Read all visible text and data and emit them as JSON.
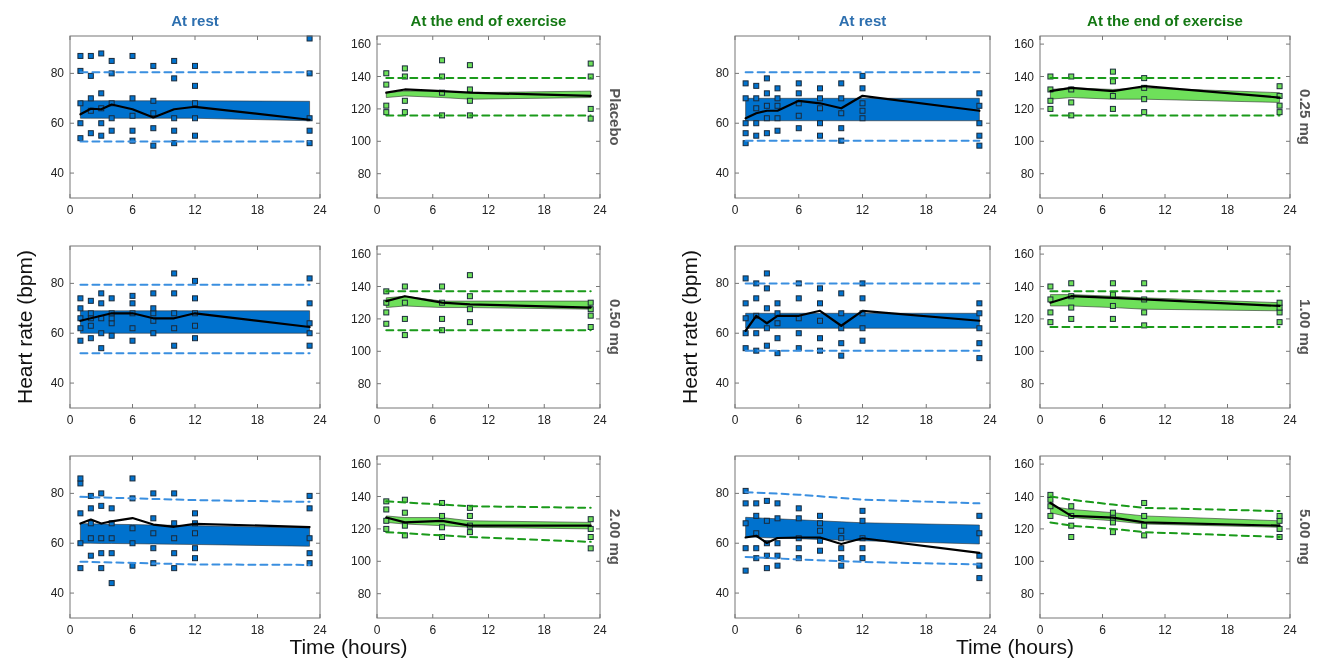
{
  "chart_data": [
    {
      "type": "line",
      "title": "At rest",
      "xlim": [
        0,
        24
      ],
      "xticks": [
        0,
        6,
        12,
        18,
        24
      ],
      "ylim": [
        30,
        95
      ],
      "yticks": [
        40,
        60,
        80
      ],
      "series": [
        {
          "type": "scatter",
          "color": "#0072ce",
          "marker": "square",
          "x": [
            1,
            1,
            1,
            1,
            1,
            2,
            2,
            2,
            2,
            2,
            3,
            3,
            3,
            3,
            3,
            4,
            4,
            4,
            4,
            4,
            6,
            6,
            6,
            6,
            6,
            8,
            8,
            8,
            8,
            8,
            10,
            10,
            10,
            10,
            10,
            12,
            12,
            12,
            12,
            12,
            23,
            23,
            23,
            23,
            23
          ],
          "values": [
            54,
            60,
            68,
            81,
            87,
            56,
            65,
            70,
            79,
            87,
            55,
            60,
            66,
            72,
            88,
            57,
            62,
            68,
            80,
            85,
            53,
            57,
            63,
            70,
            87,
            51,
            58,
            64,
            69,
            83,
            52,
            57,
            62,
            78,
            85,
            55,
            62,
            68,
            75,
            83,
            52,
            57,
            62,
            80,
            94
          ]
        },
        {
          "type": "line",
          "color": "#3a8fe0",
          "line_style": "dashed",
          "x": [
            1,
            12,
            23
          ],
          "values": [
            80.5,
            80.5,
            80.5
          ]
        },
        {
          "type": "line",
          "color": "#3a8fe0",
          "line_style": "dashed",
          "x": [
            1,
            12,
            23
          ],
          "values": [
            52.7,
            52.7,
            52.7
          ]
        },
        {
          "type": "line",
          "color": "#000000",
          "x": [
            1,
            2,
            3,
            4,
            6,
            8,
            10,
            12,
            23
          ],
          "values": [
            63.6,
            65.8,
            65.6,
            67.5,
            65.6,
            62.3,
            65.6,
            66.6,
            61.4
          ],
          "lower": [
            62,
            62,
            62,
            62,
            62,
            62,
            62,
            62,
            61
          ],
          "upper": [
            69,
            69,
            69,
            69,
            69,
            69,
            69,
            69,
            68.8
          ]
        }
      ]
    },
    {
      "type": "line",
      "title": "At the end of exercise",
      "y2label": "Placebo",
      "xlim": [
        0,
        24
      ],
      "xticks": [
        0,
        6,
        12,
        18,
        24
      ],
      "ylim": [
        65,
        165
      ],
      "yticks": [
        80,
        100,
        120,
        140,
        160
      ],
      "series": [
        {
          "type": "scatter",
          "color": "#6ee05a",
          "marker": "square",
          "x": [
            1,
            1,
            1,
            1,
            3,
            3,
            3,
            3,
            7,
            7,
            7,
            7,
            10,
            10,
            10,
            10,
            23,
            23,
            23,
            23
          ],
          "values": [
            118,
            122,
            135,
            142,
            118,
            125,
            140,
            145,
            116,
            130,
            140,
            150,
            116,
            125,
            132,
            147,
            114,
            120,
            140,
            148
          ]
        },
        {
          "type": "line",
          "color": "#1a9a1a",
          "line_style": "dashed",
          "x": [
            1,
            10,
            23
          ],
          "values": [
            139,
            139,
            139
          ]
        },
        {
          "type": "line",
          "color": "#1a9a1a",
          "line_style": "dashed",
          "x": [
            1,
            10,
            23
          ],
          "values": [
            116,
            116,
            116
          ]
        },
        {
          "type": "line",
          "color": "#000000",
          "x": [
            1,
            3,
            7,
            10,
            23
          ],
          "values": [
            130,
            132,
            131,
            130,
            128
          ],
          "lower": [
            127,
            128,
            127,
            126,
            127
          ],
          "upper": [
            130,
            131,
            131,
            130,
            131
          ]
        }
      ]
    },
    {
      "type": "line",
      "title": "At rest",
      "xlim": [
        0,
        24
      ],
      "xticks": [
        0,
        6,
        12,
        18,
        24
      ],
      "ylim": [
        30,
        95
      ],
      "yticks": [
        40,
        60,
        80
      ],
      "series": [
        {
          "type": "scatter",
          "color": "#0072ce",
          "marker": "square",
          "x": [
            1,
            1,
            1,
            1,
            1,
            2,
            2,
            2,
            2,
            2,
            3,
            3,
            3,
            3,
            3,
            4,
            4,
            4,
            4,
            4,
            6,
            6,
            6,
            6,
            6,
            8,
            8,
            8,
            8,
            8,
            10,
            10,
            10,
            10,
            10,
            12,
            12,
            12,
            12,
            12,
            23,
            23,
            23,
            23,
            23
          ],
          "values": [
            52,
            56,
            60,
            70,
            76,
            55,
            60,
            66,
            70,
            75,
            56,
            62,
            67,
            72,
            78,
            57,
            62,
            67,
            70,
            74,
            58,
            63,
            68,
            72,
            76,
            55,
            60,
            66,
            70,
            74,
            53,
            58,
            64,
            70,
            76,
            62,
            65,
            68,
            74,
            79,
            51,
            55,
            60,
            67,
            72
          ]
        },
        {
          "type": "line",
          "color": "#3a8fe0",
          "line_style": "dashed",
          "x": [
            1,
            12,
            23
          ],
          "values": [
            80.5,
            80.5,
            80.5
          ]
        },
        {
          "type": "line",
          "color": "#3a8fe0",
          "line_style": "dashed",
          "x": [
            1,
            12,
            23
          ],
          "values": [
            53,
            53,
            53
          ]
        },
        {
          "type": "line",
          "color": "#000000",
          "x": [
            1,
            2,
            3,
            4,
            6,
            8,
            10,
            12,
            23
          ],
          "values": [
            62,
            64,
            65,
            65,
            69,
            68,
            66,
            71,
            65
          ],
          "lower": [
            61,
            61,
            61,
            61,
            61,
            61,
            61,
            61,
            61
          ],
          "upper": [
            70,
            70,
            70,
            70,
            70,
            70,
            70,
            70,
            70
          ]
        }
      ]
    },
    {
      "type": "line",
      "title": "At the end of exercise",
      "y2label": "0.25 mg",
      "xlim": [
        0,
        24
      ],
      "xticks": [
        0,
        6,
        12,
        18,
        24
      ],
      "ylim": [
        65,
        165
      ],
      "yticks": [
        80,
        100,
        120,
        140,
        160
      ],
      "series": [
        {
          "type": "scatter",
          "color": "#6ee05a",
          "marker": "square",
          "x": [
            1,
            1,
            1,
            1,
            3,
            3,
            3,
            3,
            7,
            7,
            7,
            7,
            10,
            10,
            10,
            10,
            23,
            23,
            23,
            23
          ],
          "values": [
            120,
            125,
            132,
            140,
            116,
            124,
            132,
            140,
            120,
            128,
            137,
            143,
            118,
            126,
            133,
            139,
            118,
            122,
            128,
            134
          ]
        },
        {
          "type": "line",
          "color": "#1a9a1a",
          "line_style": "dashed",
          "x": [
            1,
            10,
            23
          ],
          "values": [
            139,
            139,
            139
          ]
        },
        {
          "type": "line",
          "color": "#1a9a1a",
          "line_style": "dashed",
          "x": [
            1,
            10,
            23
          ],
          "values": [
            116,
            116,
            116
          ]
        },
        {
          "type": "line",
          "color": "#000000",
          "x": [
            1,
            3,
            7,
            10,
            23
          ],
          "values": [
            131,
            133,
            131,
            134,
            127
          ],
          "lower": [
            126,
            127,
            126,
            126,
            124
          ],
          "upper": [
            132,
            133,
            132,
            133,
            130
          ]
        }
      ]
    },
    {
      "type": "line",
      "ylabel": "Heart rate (bpm)",
      "xlim": [
        0,
        24
      ],
      "xticks": [
        0,
        6,
        12,
        18,
        24
      ],
      "ylim": [
        30,
        95
      ],
      "yticks": [
        40,
        60,
        80
      ],
      "series": [
        {
          "type": "scatter",
          "color": "#0072ce",
          "marker": "square",
          "x": [
            1,
            1,
            1,
            1,
            1,
            2,
            2,
            2,
            2,
            2,
            3,
            3,
            3,
            3,
            3,
            4,
            4,
            4,
            4,
            4,
            6,
            6,
            6,
            6,
            6,
            8,
            8,
            8,
            8,
            8,
            10,
            10,
            10,
            10,
            10,
            12,
            12,
            12,
            12,
            12,
            23,
            23,
            23,
            23,
            23
          ],
          "values": [
            57,
            62,
            66,
            70,
            74,
            58,
            63,
            66,
            68,
            73,
            54,
            60,
            66,
            72,
            76,
            59,
            64,
            66,
            68,
            74,
            57,
            62,
            68,
            72,
            75,
            60,
            65,
            68,
            70,
            76,
            55,
            62,
            68,
            76,
            84,
            58,
            63,
            68,
            74,
            81,
            55,
            60,
            64,
            72,
            82
          ]
        },
        {
          "type": "line",
          "color": "#3a8fe0",
          "line_style": "dashed",
          "x": [
            1,
            12,
            23
          ],
          "values": [
            79.5,
            79.5,
            79.5
          ]
        },
        {
          "type": "line",
          "color": "#3a8fe0",
          "line_style": "dashed",
          "x": [
            1,
            12,
            23
          ],
          "values": [
            52,
            52,
            52
          ]
        },
        {
          "type": "line",
          "color": "#000000",
          "x": [
            1,
            2,
            3,
            4,
            6,
            8,
            10,
            12,
            23
          ],
          "values": [
            65,
            66,
            67,
            68,
            68,
            66,
            66,
            68,
            62.5
          ],
          "lower": [
            60,
            60,
            60,
            60,
            60,
            60,
            60,
            60,
            60
          ],
          "upper": [
            69,
            69,
            69,
            69,
            69,
            69,
            69,
            69,
            69
          ]
        }
      ]
    },
    {
      "type": "line",
      "y2label": "0.50 mg",
      "xlim": [
        0,
        24
      ],
      "xticks": [
        0,
        6,
        12,
        18,
        24
      ],
      "ylim": [
        65,
        165
      ],
      "yticks": [
        80,
        100,
        120,
        140,
        160
      ],
      "series": [
        {
          "type": "scatter",
          "color": "#6ee05a",
          "marker": "square",
          "x": [
            1,
            1,
            1,
            1,
            3,
            3,
            3,
            3,
            7,
            7,
            7,
            7,
            10,
            10,
            10,
            10,
            23,
            23,
            23,
            23
          ],
          "values": [
            117,
            124,
            130,
            137,
            110,
            120,
            130,
            140,
            113,
            120,
            130,
            140,
            118,
            126,
            134,
            147,
            115,
            122,
            126,
            130
          ]
        },
        {
          "type": "line",
          "color": "#1a9a1a",
          "line_style": "dashed",
          "x": [
            1,
            10,
            23
          ],
          "values": [
            137,
            137,
            137
          ]
        },
        {
          "type": "line",
          "color": "#1a9a1a",
          "line_style": "dashed",
          "x": [
            1,
            10,
            23
          ],
          "values": [
            113,
            113,
            113
          ]
        },
        {
          "type": "line",
          "color": "#000000",
          "x": [
            1,
            3,
            7,
            10,
            23
          ],
          "values": [
            131,
            134,
            130,
            129,
            127
          ],
          "lower": [
            127,
            128,
            127,
            127,
            126
          ],
          "upper": [
            133,
            134,
            131,
            131,
            131
          ]
        }
      ]
    },
    {
      "type": "line",
      "ylabel": "Heart rate (bpm)",
      "xlim": [
        0,
        24
      ],
      "xticks": [
        0,
        6,
        12,
        18,
        24
      ],
      "ylim": [
        30,
        95
      ],
      "yticks": [
        40,
        60,
        80
      ],
      "series": [
        {
          "type": "scatter",
          "color": "#0072ce",
          "marker": "square",
          "x": [
            1,
            1,
            1,
            1,
            1,
            2,
            2,
            2,
            2,
            2,
            3,
            3,
            3,
            3,
            3,
            4,
            4,
            4,
            4,
            4,
            6,
            6,
            6,
            6,
            6,
            8,
            8,
            8,
            8,
            8,
            10,
            10,
            10,
            10,
            10,
            12,
            12,
            12,
            12,
            12,
            23,
            23,
            23,
            23,
            23
          ],
          "values": [
            54,
            60,
            66,
            72,
            82,
            53,
            60,
            67,
            74,
            80,
            55,
            62,
            70,
            78,
            84,
            52,
            58,
            64,
            68,
            72,
            54,
            60,
            66,
            74,
            80,
            53,
            58,
            65,
            72,
            78,
            51,
            56,
            62,
            68,
            76,
            57,
            62,
            68,
            74,
            80,
            50,
            56,
            62,
            68,
            72
          ]
        },
        {
          "type": "line",
          "color": "#3a8fe0",
          "line_style": "dashed",
          "x": [
            1,
            12,
            23
          ],
          "values": [
            80,
            80,
            80
          ]
        },
        {
          "type": "line",
          "color": "#3a8fe0",
          "line_style": "dashed",
          "x": [
            1,
            12,
            23
          ],
          "values": [
            53,
            53,
            53
          ]
        },
        {
          "type": "line",
          "color": "#000000",
          "x": [
            1,
            2,
            3,
            4,
            6,
            8,
            10,
            12,
            23
          ],
          "values": [
            61,
            67,
            64,
            67,
            67,
            69,
            63,
            69,
            65
          ],
          "lower": [
            62,
            62,
            62,
            62,
            62,
            62,
            62,
            62,
            62
          ],
          "upper": [
            68,
            68,
            68,
            68,
            68,
            68,
            68,
            68,
            68
          ]
        }
      ]
    },
    {
      "type": "line",
      "y2label": "1.00 mg",
      "xlim": [
        0,
        24
      ],
      "xticks": [
        0,
        6,
        12,
        18,
        24
      ],
      "ylim": [
        65,
        165
      ],
      "yticks": [
        80,
        100,
        120,
        140,
        160
      ],
      "series": [
        {
          "type": "scatter",
          "color": "#6ee05a",
          "marker": "square",
          "x": [
            1,
            1,
            1,
            1,
            3,
            3,
            3,
            3,
            7,
            7,
            7,
            7,
            10,
            10,
            10,
            10,
            23,
            23,
            23,
            23
          ],
          "values": [
            118,
            124,
            132,
            140,
            120,
            127,
            134,
            142,
            120,
            128,
            135,
            142,
            116,
            124,
            132,
            142,
            118,
            124,
            127,
            130
          ]
        },
        {
          "type": "line",
          "color": "#1a9a1a",
          "line_style": "dashed",
          "x": [
            1,
            10,
            23
          ],
          "values": [
            137,
            137,
            137
          ]
        },
        {
          "type": "line",
          "color": "#1a9a1a",
          "line_style": "dashed",
          "x": [
            1,
            10,
            23
          ],
          "values": [
            115,
            115,
            115
          ]
        },
        {
          "type": "line",
          "color": "#000000",
          "x": [
            1,
            3,
            7,
            10,
            23
          ],
          "values": [
            130,
            134,
            133,
            132,
            128
          ],
          "lower": [
            128,
            128,
            127,
            126,
            125
          ],
          "upper": [
            135,
            135,
            134,
            133,
            130
          ]
        }
      ]
    },
    {
      "type": "line",
      "xlabel": "Time (hours)",
      "xlim": [
        0,
        24
      ],
      "xticks": [
        0,
        6,
        12,
        18,
        24
      ],
      "ylim": [
        30,
        95
      ],
      "yticks": [
        40,
        60,
        80
      ],
      "series": [
        {
          "type": "scatter",
          "color": "#0072ce",
          "marker": "square",
          "x": [
            1,
            1,
            1,
            1,
            1,
            2,
            2,
            2,
            2,
            2,
            3,
            3,
            3,
            3,
            3,
            4,
            4,
            4,
            4,
            4,
            6,
            6,
            6,
            6,
            6,
            8,
            8,
            8,
            8,
            8,
            10,
            10,
            10,
            10,
            10,
            12,
            12,
            12,
            12,
            12,
            23,
            23,
            23,
            23,
            23
          ],
          "values": [
            50,
            60,
            72,
            84,
            86,
            55,
            62,
            68,
            74,
            79,
            50,
            56,
            62,
            75,
            80,
            44,
            56,
            62,
            68,
            74,
            51,
            60,
            66,
            78,
            86,
            52,
            58,
            64,
            70,
            80,
            50,
            56,
            62,
            68,
            80,
            54,
            58,
            64,
            68,
            72,
            52,
            56,
            62,
            74,
            79
          ]
        },
        {
          "type": "line",
          "color": "#3a8fe0",
          "line_style": "dashed",
          "x": [
            1,
            12,
            23
          ],
          "values": [
            78.6,
            77.3,
            76.6
          ]
        },
        {
          "type": "line",
          "color": "#3a8fe0",
          "line_style": "dashed",
          "x": [
            1,
            12,
            23
          ],
          "values": [
            52.6,
            51.5,
            51.3
          ]
        },
        {
          "type": "line",
          "color": "#000000",
          "x": [
            1,
            2,
            3,
            4,
            6,
            8,
            10,
            12,
            23
          ],
          "values": [
            67.9,
            69.5,
            67.9,
            68.8,
            70.1,
            67.5,
            66.6,
            67.8,
            66.5
          ],
          "lower": [
            60,
            60,
            59.9,
            59.9,
            59.8,
            59.7,
            59.6,
            59.5,
            58.8
          ],
          "upper": [
            67.9,
            67.8,
            67.7,
            67.6,
            67.5,
            67.3,
            67.2,
            67,
            66.2
          ]
        }
      ]
    },
    {
      "type": "line",
      "y2label": "2.00 mg",
      "xlim": [
        0,
        24
      ],
      "xticks": [
        0,
        6,
        12,
        18,
        24
      ],
      "ylim": [
        65,
        165
      ],
      "yticks": [
        80,
        100,
        120,
        140,
        160
      ],
      "series": [
        {
          "type": "scatter",
          "color": "#6ee05a",
          "marker": "square",
          "x": [
            1,
            1,
            1,
            1,
            3,
            3,
            3,
            3,
            7,
            7,
            7,
            7,
            10,
            10,
            10,
            10,
            23,
            23,
            23,
            23
          ],
          "values": [
            120,
            125,
            132,
            137,
            116,
            122,
            130,
            138,
            115,
            121,
            128,
            136,
            118,
            122,
            128,
            133,
            108,
            115,
            120,
            126
          ]
        },
        {
          "type": "line",
          "color": "#1a9a1a",
          "line_style": "dashed",
          "x": [
            1,
            10,
            23
          ],
          "values": [
            137,
            134,
            133
          ]
        },
        {
          "type": "line",
          "color": "#1a9a1a",
          "line_style": "dashed",
          "x": [
            1,
            10,
            23
          ],
          "values": [
            118,
            115,
            112
          ]
        },
        {
          "type": "line",
          "color": "#000000",
          "x": [
            1,
            3,
            7,
            10,
            23
          ],
          "values": [
            127,
            124,
            125,
            122,
            122
          ],
          "lower": [
            124,
            123,
            122,
            121,
            120
          ],
          "upper": [
            128,
            127,
            127,
            125,
            124
          ]
        }
      ]
    },
    {
      "type": "line",
      "xlabel": "Time (hours)",
      "xlim": [
        0,
        24
      ],
      "xticks": [
        0,
        6,
        12,
        18,
        24
      ],
      "ylim": [
        30,
        95
      ],
      "yticks": [
        40,
        60,
        80
      ],
      "series": [
        {
          "type": "scatter",
          "color": "#0072ce",
          "marker": "square",
          "x": [
            1,
            1,
            1,
            1,
            1,
            2,
            2,
            2,
            2,
            2,
            3,
            3,
            3,
            3,
            3,
            4,
            4,
            4,
            4,
            4,
            6,
            6,
            6,
            6,
            6,
            8,
            8,
            8,
            8,
            8,
            10,
            10,
            10,
            10,
            10,
            12,
            12,
            12,
            12,
            12,
            23,
            23,
            23,
            23,
            23
          ],
          "values": [
            49,
            58,
            68,
            76,
            81,
            54,
            58,
            64,
            71,
            76,
            50,
            55,
            60,
            69,
            77,
            51,
            55,
            60,
            70,
            76,
            54,
            58,
            62,
            70,
            74,
            57,
            61,
            65,
            68,
            71,
            51,
            54,
            58,
            62,
            65,
            54,
            58,
            62,
            69,
            73,
            46,
            51,
            55,
            64,
            71
          ]
        },
        {
          "type": "line",
          "color": "#3a8fe0",
          "line_style": "dashed",
          "x": [
            1,
            6,
            12,
            23
          ],
          "values": [
            80.5,
            79.5,
            77.5,
            76
          ]
        },
        {
          "type": "line",
          "color": "#3a8fe0",
          "line_style": "dashed",
          "x": [
            1,
            6,
            12,
            23
          ],
          "values": [
            54.5,
            53.5,
            52.5,
            51.5
          ]
        },
        {
          "type": "line",
          "color": "#000000",
          "x": [
            1,
            2,
            3,
            4,
            6,
            8,
            10,
            12,
            23
          ],
          "values": [
            62.3,
            63,
            60.1,
            62.1,
            62.3,
            62.3,
            59.7,
            62,
            56.1
          ],
          "lower": [
            62.5,
            62.4,
            62.2,
            62.1,
            61.8,
            61.5,
            61.3,
            61,
            59.7
          ],
          "upper": [
            70.4,
            70.2,
            70,
            69.8,
            69.4,
            69,
            68.6,
            68.2,
            67.3
          ]
        }
      ]
    },
    {
      "type": "line",
      "y2label": "5.00 mg",
      "xlim": [
        0,
        24
      ],
      "xticks": [
        0,
        6,
        12,
        18,
        24
      ],
      "ylim": [
        65,
        165
      ],
      "yticks": [
        80,
        100,
        120,
        140,
        160
      ],
      "series": [
        {
          "type": "scatter",
          "color": "#6ee05a",
          "marker": "square",
          "x": [
            1,
            1,
            1,
            1,
            3,
            3,
            3,
            3,
            7,
            7,
            7,
            7,
            10,
            10,
            10,
            10,
            23,
            23,
            23,
            23
          ],
          "values": [
            128,
            134,
            138,
            141,
            115,
            122,
            128,
            134,
            118,
            124,
            127,
            130,
            116,
            122,
            128,
            136,
            115,
            120,
            125,
            128
          ]
        },
        {
          "type": "line",
          "color": "#1a9a1a",
          "line_style": "dashed",
          "x": [
            1,
            3,
            7,
            10,
            23
          ],
          "values": [
            140,
            138,
            135,
            133,
            131
          ]
        },
        {
          "type": "line",
          "color": "#1a9a1a",
          "line_style": "dashed",
          "x": [
            1,
            3,
            7,
            10,
            23
          ],
          "values": [
            124,
            122,
            120,
            118,
            115
          ]
        },
        {
          "type": "line",
          "color": "#000000",
          "x": [
            1,
            3,
            7,
            10,
            23
          ],
          "values": [
            136,
            128,
            127,
            124,
            122
          ],
          "lower": [
            130,
            127,
            125,
            123,
            121
          ],
          "upper": [
            134,
            132,
            130,
            128,
            125
          ]
        }
      ]
    }
  ]
}
